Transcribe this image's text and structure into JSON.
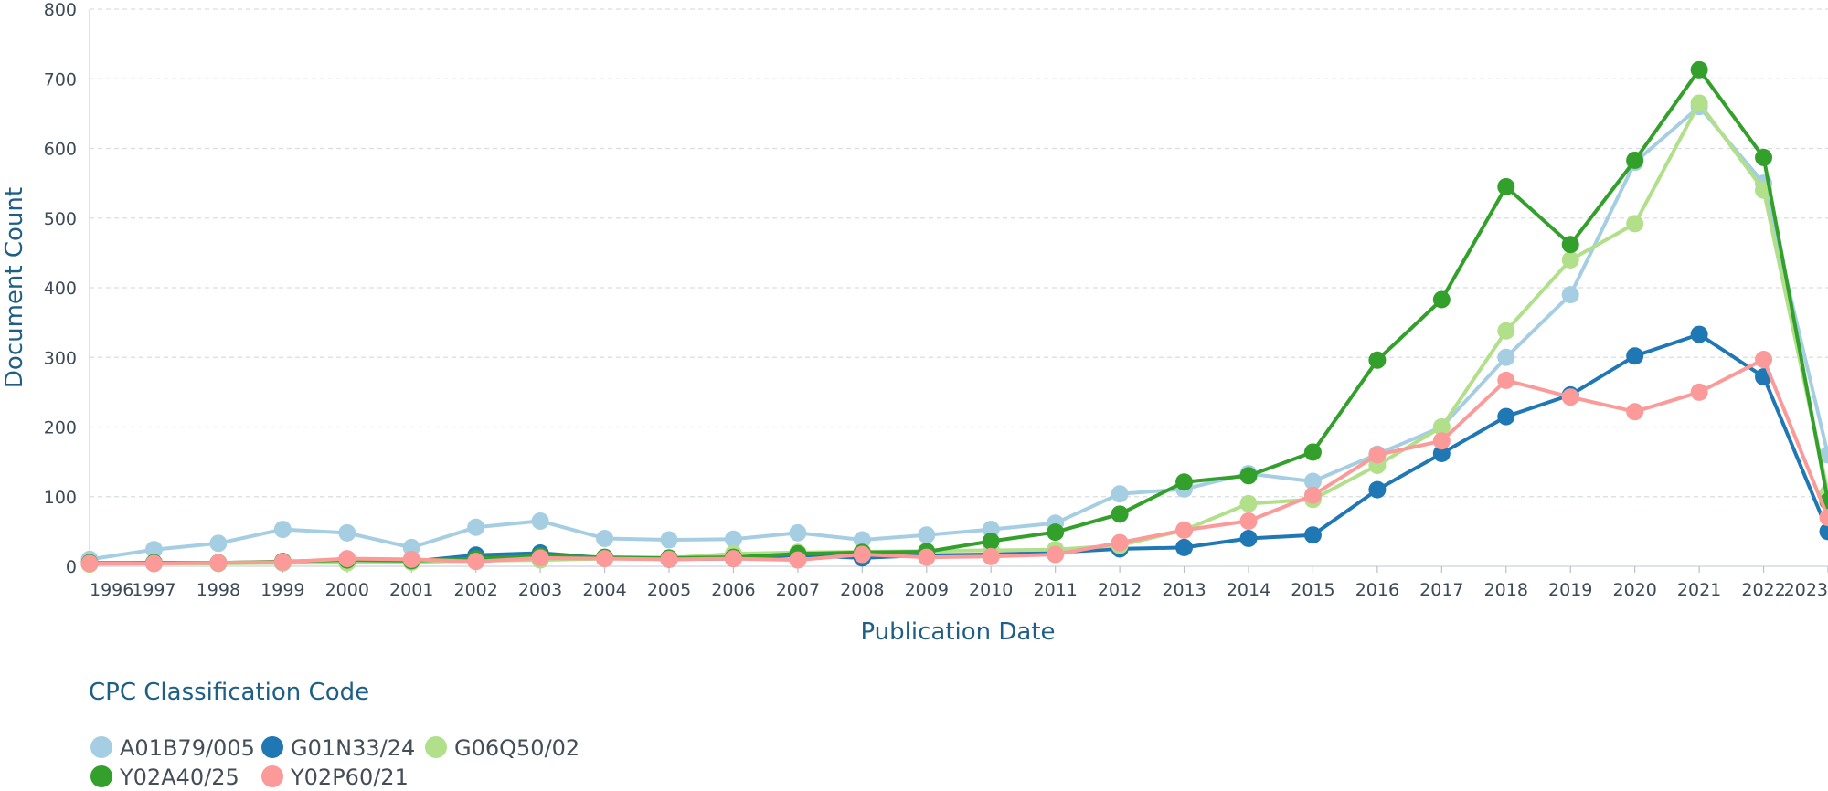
{
  "chart_data": {
    "type": "line",
    "xlabel": "Publication Date",
    "ylabel": "Document Count",
    "ylim": [
      0,
      800
    ],
    "yticks": [
      0,
      100,
      200,
      300,
      400,
      500,
      600,
      700,
      800
    ],
    "x": [
      "1996",
      "1997",
      "1998",
      "1999",
      "2000",
      "2001",
      "2002",
      "2003",
      "2004",
      "2005",
      "2006",
      "2007",
      "2008",
      "2009",
      "2010",
      "2011",
      "2012",
      "2013",
      "2014",
      "2015",
      "2016",
      "2017",
      "2018",
      "2019",
      "2020",
      "2021",
      "2022",
      "2023"
    ],
    "grid": true,
    "legend": {
      "title": "CPC Classification Code",
      "position": "bottom-left"
    },
    "series": [
      {
        "name": "A01B79/005",
        "color": "#a6cee3",
        "values": [
          10,
          24,
          33,
          53,
          48,
          27,
          56,
          65,
          40,
          38,
          39,
          48,
          38,
          45,
          53,
          62,
          104,
          111,
          133,
          122,
          161,
          200,
          300,
          390,
          580,
          660,
          550,
          160
        ]
      },
      {
        "name": "G01N33/24",
        "color": "#1f78b4",
        "values": [
          4,
          5,
          5,
          5,
          6,
          7,
          16,
          19,
          12,
          10,
          11,
          16,
          12,
          16,
          17,
          20,
          25,
          27,
          40,
          45,
          110,
          162,
          215,
          246,
          302,
          333,
          272,
          50
        ]
      },
      {
        "name": "G06Q50/02",
        "color": "#b2df8a",
        "values": [
          3,
          4,
          4,
          5,
          5,
          6,
          8,
          9,
          11,
          12,
          18,
          20,
          21,
          22,
          23,
          24,
          30,
          52,
          90,
          96,
          145,
          200,
          338,
          440,
          492,
          665,
          540,
          105
        ]
      },
      {
        "name": "Y02A40/25",
        "color": "#33a02c",
        "values": [
          5,
          5,
          5,
          7,
          9,
          8,
          11,
          15,
          13,
          12,
          13,
          18,
          20,
          21,
          36,
          49,
          75,
          121,
          130,
          164,
          296,
          383,
          545,
          462,
          583,
          713,
          587,
          93
        ]
      },
      {
        "name": "Y02P60/21",
        "color": "#fb9a99",
        "values": [
          4,
          4,
          5,
          6,
          11,
          10,
          7,
          12,
          11,
          10,
          11,
          9,
          17,
          13,
          14,
          17,
          34,
          52,
          65,
          102,
          160,
          180,
          267,
          243,
          222,
          250,
          297,
          70
        ]
      }
    ]
  }
}
